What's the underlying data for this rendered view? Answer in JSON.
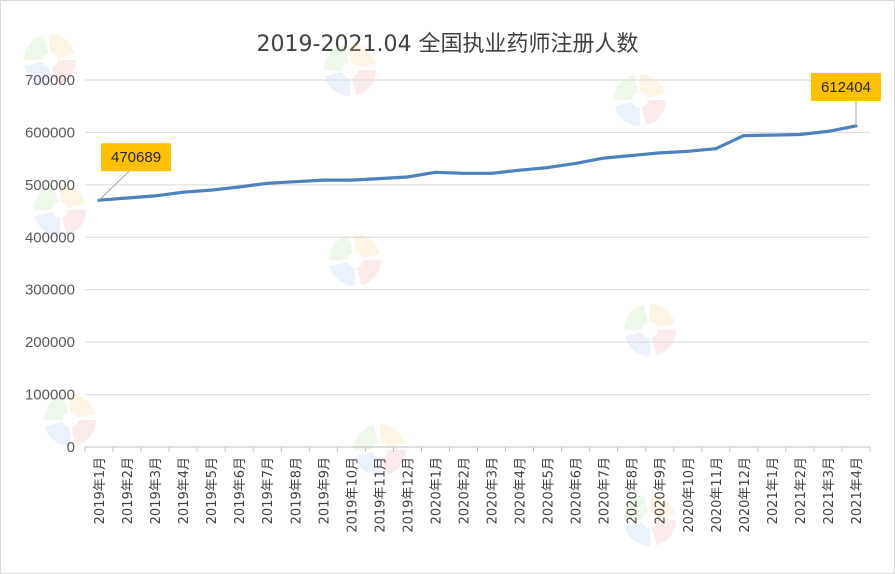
{
  "chart_data": {
    "type": "line",
    "title": "2019-2021.04 全国执业药师注册人数",
    "xlabel": "",
    "ylabel": "",
    "ylim": [
      0,
      700000
    ],
    "yticks": [
      0,
      100000,
      200000,
      300000,
      400000,
      500000,
      600000,
      700000
    ],
    "grid": true,
    "legend": "none",
    "line_color": "#4f81bd",
    "categories": [
      "2019年1月",
      "2019年2月",
      "2019年3月",
      "2019年4月",
      "2019年5月",
      "2019年6月",
      "2019年7月",
      "2019年8月",
      "2019年9月",
      "2019年10月",
      "2019年11月",
      "2019年12月",
      "2020年1月",
      "2020年2月",
      "2020年3月",
      "2020年4月",
      "2020年5月",
      "2020年6月",
      "2020年7月",
      "2020年8月",
      "2020年9月",
      "2020年10月",
      "2020年11月",
      "2020年12月",
      "2021年1月",
      "2021年2月",
      "2021年3月",
      "2021年4月"
    ],
    "values": [
      470689,
      475000,
      479000,
      486000,
      490000,
      496000,
      503000,
      506000,
      509000,
      509000,
      512000,
      515000,
      524000,
      522000,
      522000,
      528000,
      533000,
      541000,
      551000,
      556000,
      561000,
      564000,
      569000,
      594000,
      595000,
      596000,
      602000,
      612404
    ],
    "annotations": [
      {
        "index": 0,
        "label": "470689"
      },
      {
        "index": 27,
        "label": "612404"
      }
    ]
  }
}
